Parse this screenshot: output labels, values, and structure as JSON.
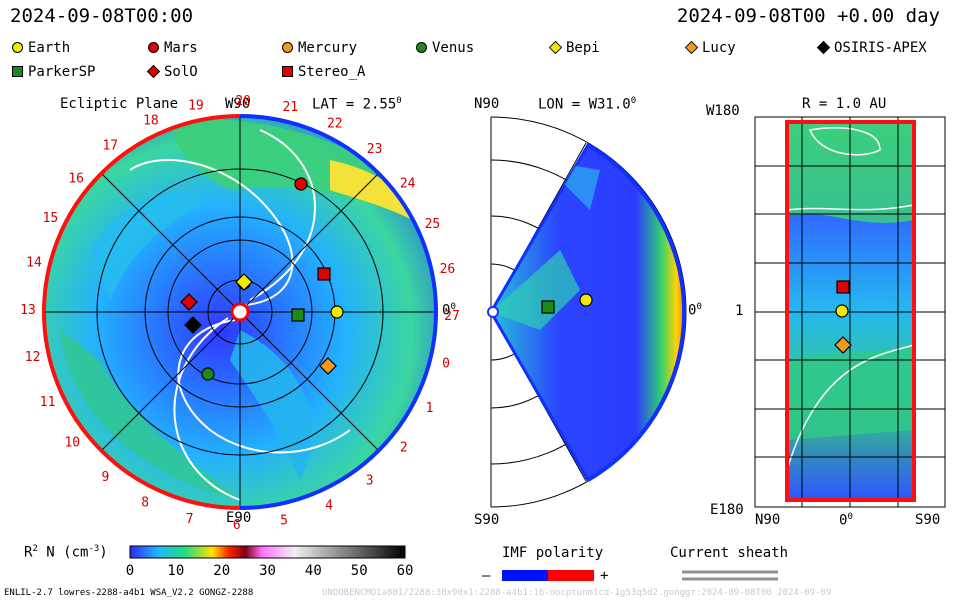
{
  "header": {
    "datetime_left": "2024-09-08T00:00",
    "datetime_right": "2024-09-08T00 +0.00 day"
  },
  "legend": {
    "items": [
      {
        "label": "Earth",
        "shape": "circle",
        "color": "#f5e800"
      },
      {
        "label": "Mars",
        "shape": "circle",
        "color": "#e00000"
      },
      {
        "label": "Mercury",
        "shape": "circle",
        "color": "#f39a1e"
      },
      {
        "label": "Venus",
        "shape": "circle",
        "color": "#1a8a1a"
      },
      {
        "label": "Bepi",
        "shape": "diamond",
        "color": "#f5e800"
      },
      {
        "label": "Lucy",
        "shape": "diamond",
        "color": "#f39a1e"
      },
      {
        "label": "OSIRIS-APEX",
        "shape": "diamond",
        "color": "#000000"
      },
      {
        "label": "ParkerSP",
        "shape": "square",
        "color": "#1a8a1a"
      },
      {
        "label": "SolO",
        "shape": "diamond",
        "color": "#e00000"
      },
      {
        "label": "Stereo_A",
        "shape": "square",
        "color": "#e00000"
      }
    ]
  },
  "panel_ecliptic": {
    "title": "Ecliptic Plane",
    "top_label": "W90",
    "bottom_label": "E90",
    "right_label": "0",
    "lat_label": "LAT = 2.55",
    "deg": "0",
    "cr_numbers": [
      "19",
      "20",
      "21",
      "22",
      "23",
      "24",
      "25",
      "26",
      "27",
      "0",
      "1",
      "2",
      "3",
      "4",
      "5",
      "6",
      "7",
      "8",
      "9",
      "10",
      "11",
      "12",
      "13",
      "14",
      "15",
      "16",
      "17",
      "18"
    ]
  },
  "panel_meridional": {
    "top_label": "N90",
    "bottom_label": "S90",
    "lon_label": "LON = W31.0",
    "deg": "0",
    "right_label": "0"
  },
  "panel_map": {
    "r_label": "R = 1.0 AU",
    "top_left": "W180",
    "bottom_left": "E180",
    "mid_left": "1",
    "bottom_center": "0",
    "bottom_left_x": "N90",
    "bottom_right_x": "S90",
    "deg": "0"
  },
  "colorbar": {
    "label": "R",
    "sup": "2",
    "unit": "N (cm",
    "unit_sup": "-3",
    "unit_close": ")",
    "ticks": [
      "0",
      "10",
      "20",
      "30",
      "40",
      "50",
      "60"
    ]
  },
  "imf": {
    "title": "IMF polarity",
    "minus": "–",
    "plus": "+",
    "neg_color": "#0010ff",
    "pos_color": "#ff0000"
  },
  "sheath": {
    "title": "Current sheath"
  },
  "footer": {
    "left": "ENLIL-2.7 lowres-2288-a4b1 WSA_V2.2 GONGZ-2288",
    "center": "UNDOBENCMO1a801/2288:30x90x1:2288-a4b1:16-nocptunm1cd-1g53q5d2.gonggr:2024-09-08T00  2024-09-09"
  }
}
